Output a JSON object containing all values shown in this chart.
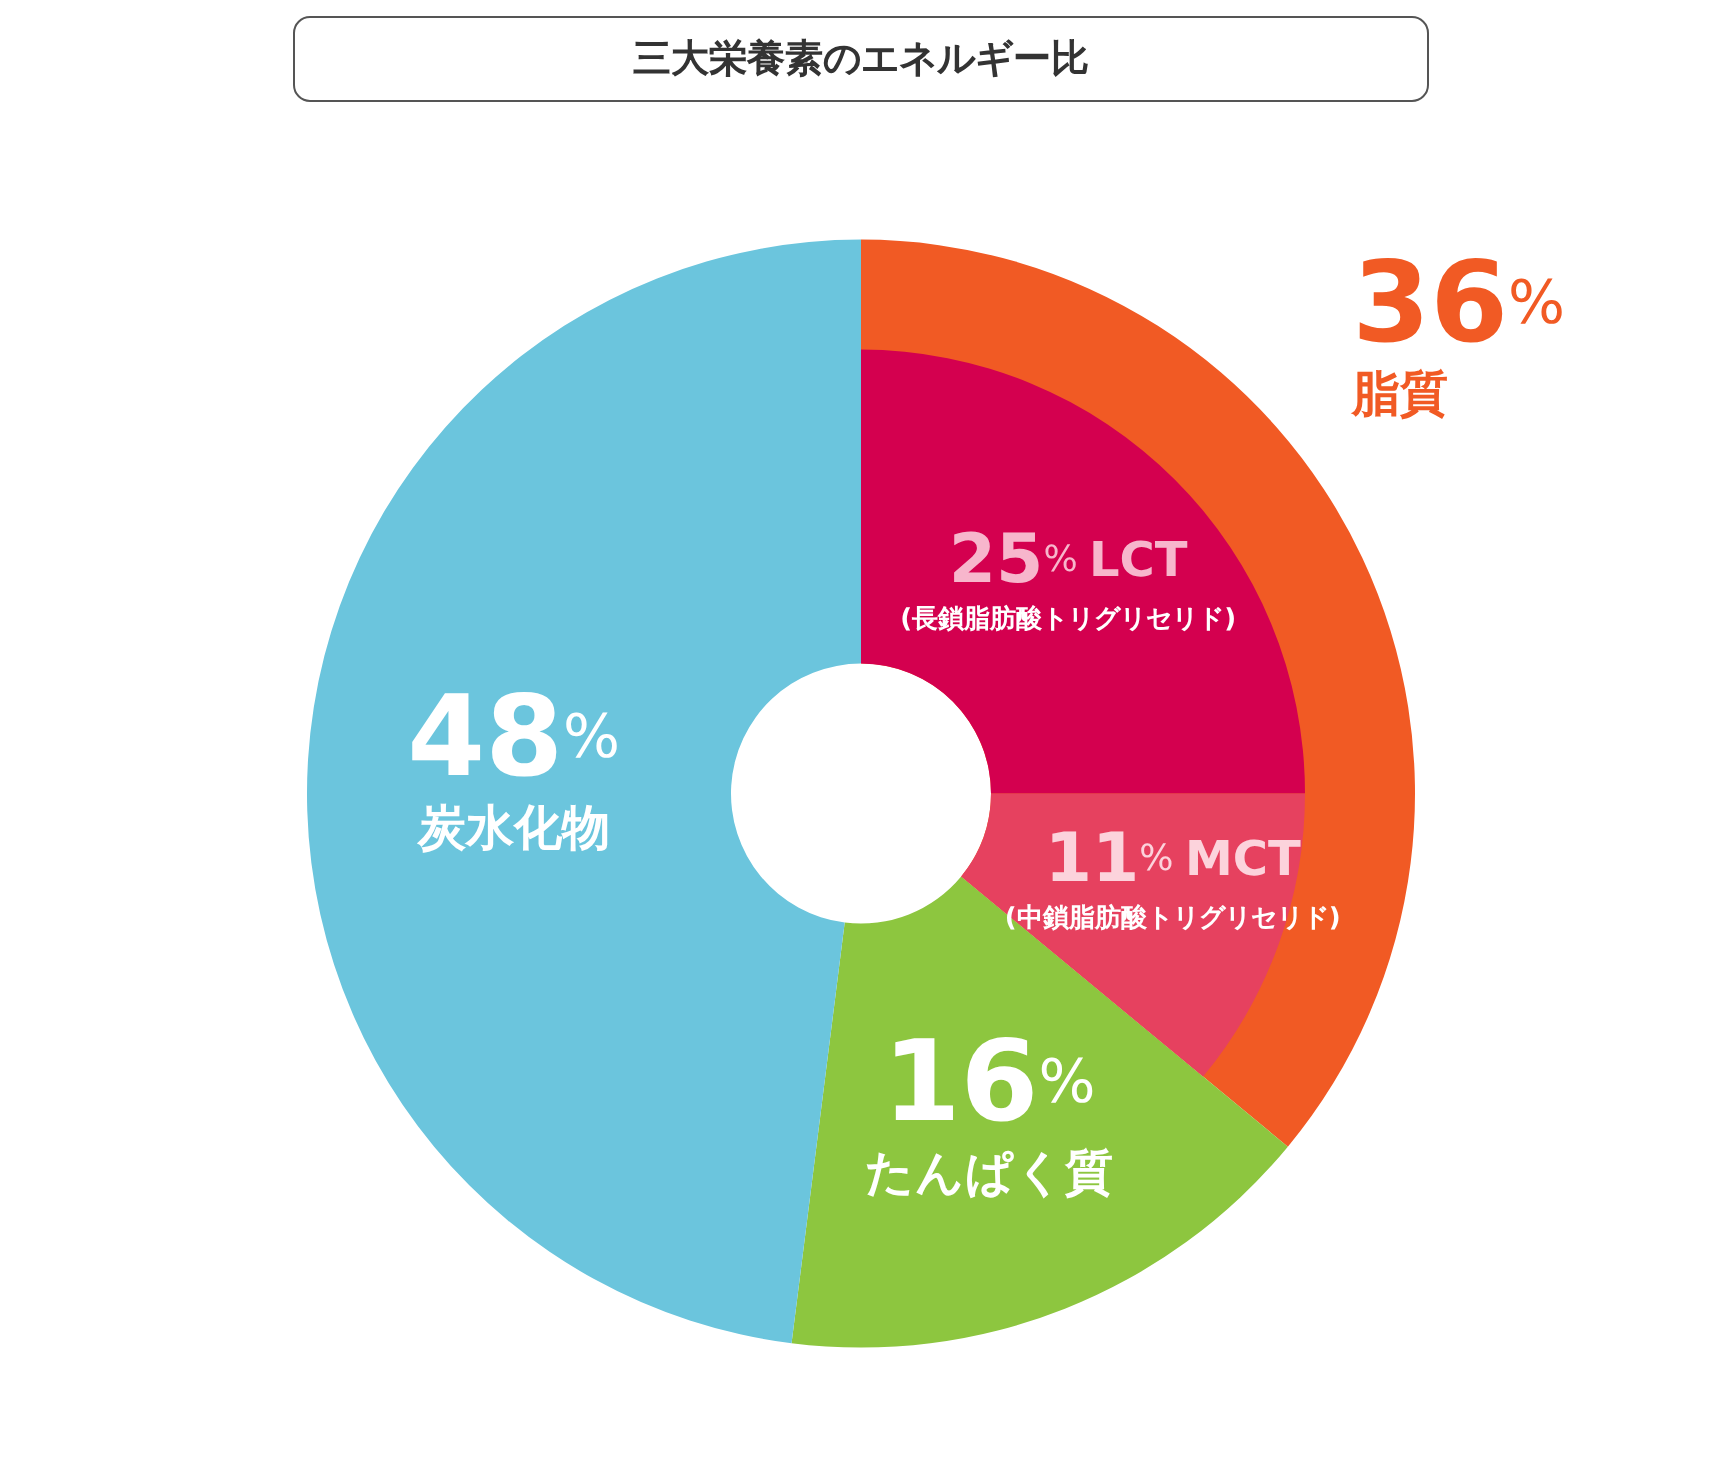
{
  "chart_data": [
    {
      "type": "donut",
      "title": "三大栄養素のエネルギー比",
      "categories": [
        "脂質",
        "たんぱく質",
        "炭水化物"
      ],
      "values": [
        36,
        16,
        48
      ],
      "value_labels": [
        "36%",
        "16%",
        "48%"
      ],
      "colors": [
        "#f15a24",
        "#8dc63f",
        "#6bc5dd"
      ]
    },
    {
      "type": "donut",
      "categories": [
        "LCT\n(長鎖脂肪酸トリグリセリド)",
        "MCT\n(中鎖脂肪酸トリグリセリド)"
      ],
      "values": [
        25,
        11
      ],
      "value_labels": [
        "25%",
        "11%"
      ],
      "colors": [
        "#d4004f",
        "#e6415f"
      ]
    }
  ]
}
